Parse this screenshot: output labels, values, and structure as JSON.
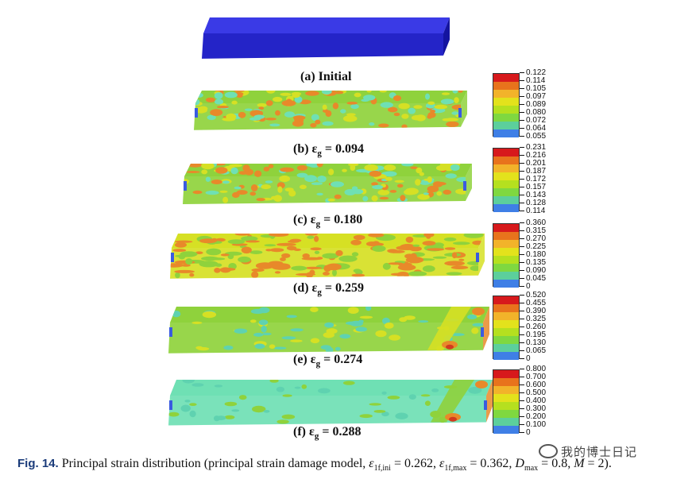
{
  "figure": {
    "panels": [
      {
        "id": "a",
        "label": "(a) Initial",
        "prefix": "(a) ",
        "strain_text": "Initial",
        "has_eps": false
      },
      {
        "id": "b",
        "label": "(b) εg = 0.094",
        "prefix": "(b) ε",
        "sub": "g",
        "value_text": " = 0.094",
        "has_eps": true
      },
      {
        "id": "c",
        "label": "(c) εg = 0.180",
        "prefix": "(c) ε",
        "sub": "g",
        "value_text": " = 0.180",
        "has_eps": true
      },
      {
        "id": "d",
        "label": "(d) εg = 0.259",
        "prefix": "(d) ε",
        "sub": "g",
        "value_text": " = 0.259",
        "has_eps": true
      },
      {
        "id": "e",
        "label": "(e) εg = 0.274",
        "prefix": "(e) ε",
        "sub": "g",
        "value_text": " = 0.274",
        "has_eps": true
      },
      {
        "id": "f",
        "label": "(f) εg = 0.288",
        "prefix": "(f) ε",
        "sub": "g",
        "value_text": " = 0.288",
        "has_eps": true
      }
    ],
    "legends": [
      {
        "panel": "b",
        "ticks": [
          "0.122",
          "0.114",
          "0.105",
          "0.097",
          "0.089",
          "0.080",
          "0.072",
          "0.064",
          "0.055"
        ]
      },
      {
        "panel": "c",
        "ticks": [
          "0.231",
          "0.216",
          "0.201",
          "0.187",
          "0.172",
          "0.157",
          "0.143",
          "0.128",
          "0.114"
        ]
      },
      {
        "panel": "d",
        "ticks": [
          "0.360",
          "0.315",
          "0.270",
          "0.225",
          "0.180",
          "0.135",
          "0.090",
          "0.045",
          "0"
        ]
      },
      {
        "panel": "e",
        "ticks": [
          "0.520",
          "0.455",
          "0.390",
          "0.325",
          "0.260",
          "0.195",
          "0.130",
          "0.065",
          "0"
        ]
      },
      {
        "panel": "f",
        "ticks": [
          "0.800",
          "0.700",
          "0.600",
          "0.500",
          "0.400",
          "0.300",
          "0.200",
          "0.100",
          "0"
        ]
      }
    ],
    "colormap": [
      "#d7191c",
      "#e8731c",
      "#f2b32a",
      "#e3e21c",
      "#b5e01f",
      "#7fd840",
      "#5ccf9c",
      "#3f7fe6",
      "#1a1adb"
    ],
    "colors": {
      "initial_top": "#3a3ae6",
      "initial_front": "#2424c8",
      "initial_side": "#1414a0",
      "green": "#8fd23c",
      "yellow": "#d6e024",
      "orange": "#e8892a",
      "red": "#d23a1e",
      "cyan": "#6fe0b4",
      "teal": "#5fd2b0",
      "blue": "#3a5be0"
    }
  },
  "caption": {
    "fig_label": "Fig. 14.",
    "text_before": " Principal strain distribution (principal strain damage model, ",
    "eps1": "ε",
    "eps1_sub": "1f,ini",
    "eq1": " = 0.262, ",
    "eps2": "ε",
    "eps2_sub": "1f,max",
    "eq2": " = 0.362, ",
    "dmax": "D",
    "dmax_sub": "max",
    "eq3": " = 0.8, ",
    "m": "M",
    "eq4": " = 2)."
  },
  "watermark": {
    "text": "我的博士日记"
  }
}
